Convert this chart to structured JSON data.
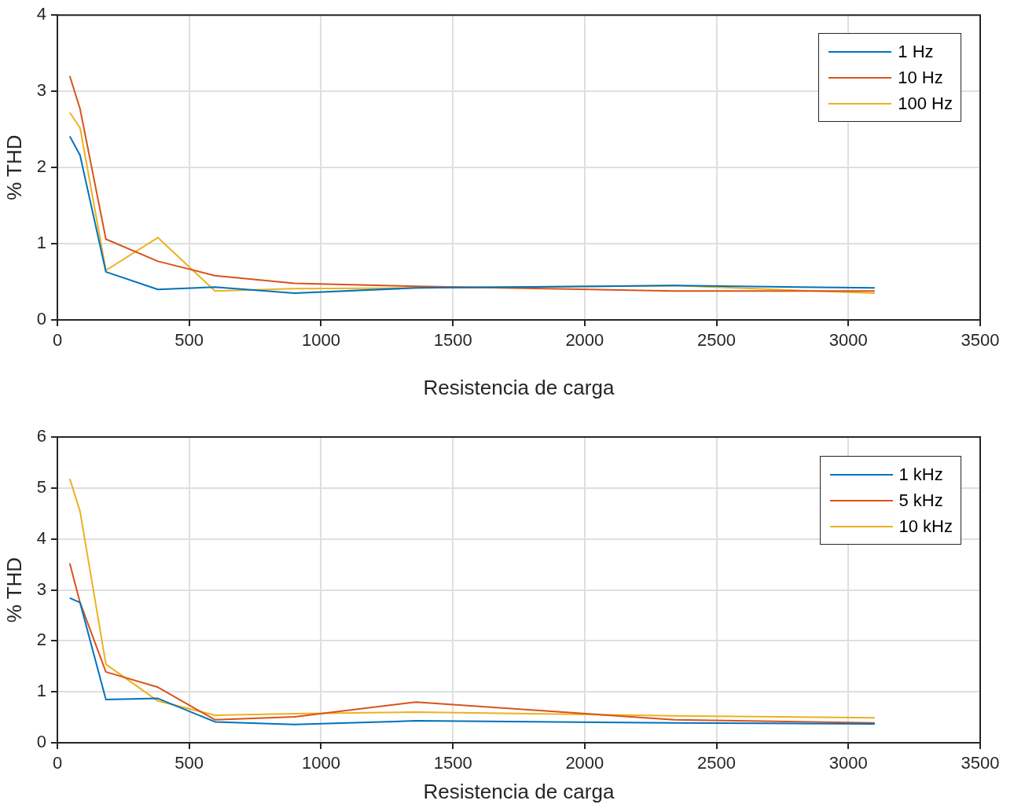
{
  "chart_data": [
    {
      "type": "line",
      "xlabel": "Resistencia de carga",
      "ylabel": "% THD",
      "x": [
        47,
        86,
        184,
        381,
        598,
        900,
        1360,
        2340,
        3100
      ],
      "xlim": [
        0,
        3500
      ],
      "xticks": [
        0,
        500,
        1000,
        1500,
        2000,
        2500,
        3000,
        3500
      ],
      "ylim": [
        0,
        4
      ],
      "yticks": [
        0,
        1,
        2,
        3,
        4
      ],
      "grid": true,
      "legend": "top right",
      "marker": "none",
      "line_style": "solid",
      "series": [
        {
          "name": "1 Hz",
          "color": "#0072bd",
          "values": [
            2.41,
            2.16,
            0.63,
            0.4,
            0.43,
            0.35,
            0.42,
            0.45,
            0.42
          ]
        },
        {
          "name": "10 Hz",
          "color": "#d95319",
          "values": [
            3.2,
            2.77,
            1.06,
            0.77,
            0.58,
            0.48,
            0.44,
            0.38,
            0.38
          ]
        },
        {
          "name": "100 Hz",
          "color": "#edb120",
          "values": [
            2.72,
            2.52,
            0.65,
            1.08,
            0.38,
            0.41,
            0.42,
            0.45,
            0.35
          ]
        }
      ]
    },
    {
      "type": "line",
      "xlabel": "Resistencia de carga",
      "ylabel": "% THD",
      "x": [
        47,
        86,
        184,
        381,
        598,
        900,
        1360,
        2340,
        3100
      ],
      "xlim": [
        0,
        3500
      ],
      "xticks": [
        0,
        500,
        1000,
        1500,
        2000,
        2500,
        3000,
        3500
      ],
      "ylim": [
        0,
        6
      ],
      "yticks": [
        0,
        1,
        2,
        3,
        4,
        5,
        6
      ],
      "grid": true,
      "legend": "top right",
      "marker": "none",
      "line_style": "solid",
      "series": [
        {
          "name": "1 kHz",
          "color": "#0072bd",
          "values": [
            2.84,
            2.75,
            0.85,
            0.87,
            0.41,
            0.36,
            0.43,
            0.39,
            0.37
          ]
        },
        {
          "name": "5 kHz",
          "color": "#d95319",
          "values": [
            3.52,
            2.75,
            1.39,
            1.09,
            0.45,
            0.51,
            0.8,
            0.45,
            0.39
          ]
        },
        {
          "name": "10 kHz",
          "color": "#edb120",
          "values": [
            5.18,
            4.54,
            1.54,
            0.82,
            0.54,
            0.57,
            0.6,
            0.53,
            0.49
          ]
        }
      ]
    }
  ]
}
